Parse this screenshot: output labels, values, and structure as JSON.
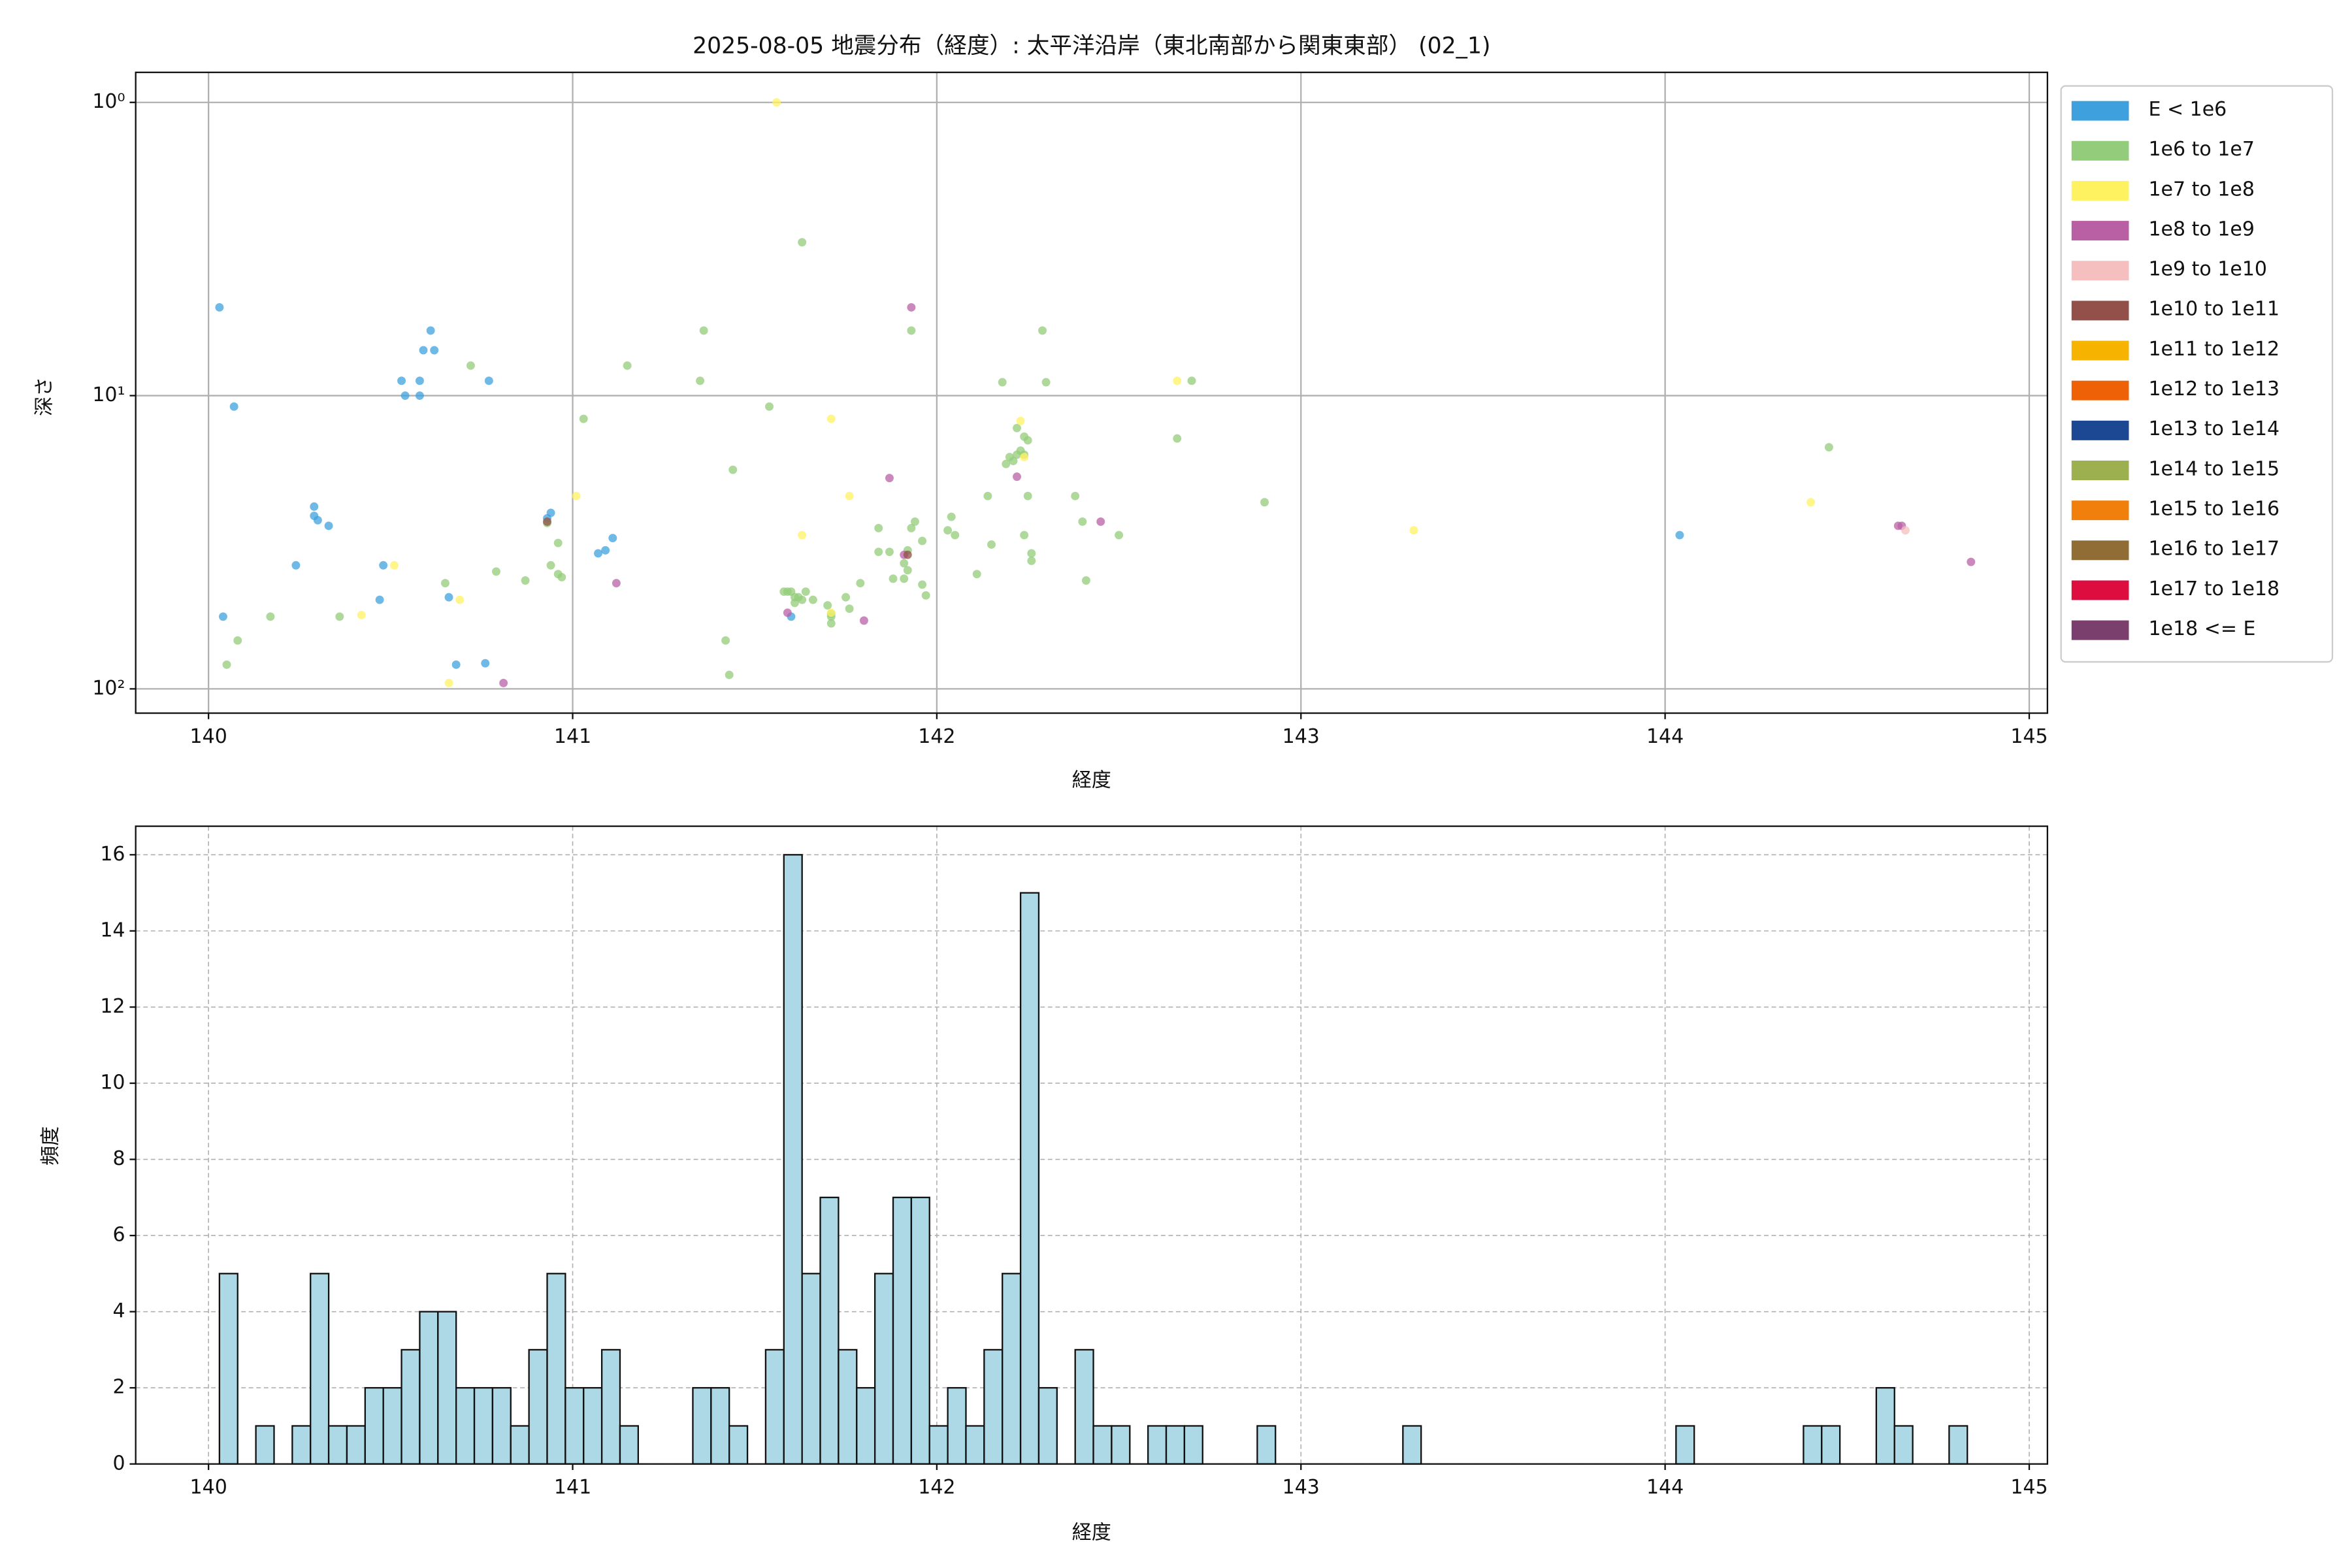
{
  "chart_data": [
    {
      "type": "scatter",
      "title": "2025-08-05 地震分布（経度）: 太平洋沿岸（東北南部から関東東部） (02_1)",
      "x_label": "経度",
      "y_label": "深さ",
      "xlim": [
        139.8,
        145.05
      ],
      "xticks": [
        140,
        141,
        142,
        143,
        144,
        145
      ],
      "ylim": [
        0.79,
        121
      ],
      "y_log": true,
      "y_inverted": true,
      "yticks": [
        {
          "value": 1,
          "label": "10⁰"
        },
        {
          "value": 10,
          "label": "10¹"
        },
        {
          "value": 100,
          "label": "10²"
        }
      ],
      "grid": true,
      "legend": "right",
      "series": [
        {
          "name": "E < 1e6",
          "color": "#3ea1dd",
          "x": [
            140.03,
            140.07,
            140.04,
            140.61,
            140.59,
            140.62,
            140.53,
            140.58,
            140.54,
            140.58,
            140.77,
            140.29,
            140.29,
            140.3,
            140.33,
            140.24,
            140.48,
            140.47,
            140.66,
            140.68,
            140.76,
            140.94,
            140.93,
            141.11,
            141.07,
            141.09,
            141.6,
            144.04
          ],
          "values": [
            5.0,
            10.9,
            56.7,
            6.0,
            7.0,
            7.0,
            8.9,
            8.9,
            10.0,
            10.0,
            8.9,
            23.9,
            25.7,
            26.6,
            27.8,
            37.9,
            37.9,
            49.7,
            48.7,
            82.7,
            81.8,
            25.1,
            26.2,
            30.6,
            34.5,
            33.7,
            56.7,
            29.9
          ]
        },
        {
          "name": "1e6 to 1e7",
          "color": "#93cc7a",
          "x": [
            140.05,
            140.08,
            140.17,
            140.36,
            140.65,
            140.72,
            140.79,
            140.87,
            140.93,
            140.94,
            140.96,
            140.97,
            140.96,
            141.03,
            141.15,
            141.36,
            141.35,
            141.44,
            141.42,
            141.43,
            141.54,
            141.63,
            141.58,
            141.59,
            141.6,
            141.61,
            141.62,
            141.64,
            141.61,
            141.63,
            141.66,
            141.7,
            141.71,
            141.71,
            141.71,
            141.75,
            141.76,
            141.79,
            141.84,
            141.84,
            141.87,
            141.88,
            141.91,
            141.91,
            141.92,
            141.92,
            141.93,
            141.94,
            141.96,
            141.96,
            141.97,
            141.93,
            142.03,
            142.05,
            142.04,
            142.11,
            142.14,
            142.15,
            142.18,
            142.19,
            142.2,
            142.21,
            142.22,
            142.23,
            142.24,
            142.22,
            142.24,
            142.25,
            142.24,
            142.25,
            142.26,
            142.26,
            142.29,
            142.3,
            142.38,
            142.4,
            142.41,
            142.5,
            142.66,
            142.7,
            142.9,
            144.45
          ],
          "values": [
            82.7,
            68.4,
            56.7,
            56.7,
            43.6,
            7.9,
            39.8,
            42.7,
            27.2,
            37.9,
            40.6,
            41.6,
            31.8,
            12.0,
            7.9,
            6.0,
            8.9,
            17.9,
            68.4,
            89.6,
            10.9,
            3.0,
            46.6,
            46.6,
            46.6,
            48.7,
            48.7,
            46.6,
            50.9,
            49.7,
            49.7,
            51.9,
            56.7,
            59.8,
            55.5,
            48.7,
            53.3,
            43.6,
            28.3,
            34.1,
            34.1,
            42.1,
            42.1,
            37.3,
            33.7,
            39.4,
            28.3,
            26.9,
            31.3,
            44.1,
            48.0,
            6.0,
            28.8,
            29.9,
            25.9,
            40.6,
            22.0,
            32.2,
            9.0,
            17.1,
            16.2,
            16.7,
            15.9,
            15.4,
            15.9,
            12.9,
            13.8,
            14.2,
            29.9,
            22.0,
            34.5,
            36.6,
            6.0,
            9.0,
            22.0,
            26.9,
            42.7,
            29.9,
            14.0,
            8.9,
            23.1,
            15.0
          ]
        },
        {
          "name": "1e7 to 1e8",
          "color": "#fff261",
          "x": [
            141.56,
            141.71,
            141.63,
            141.76,
            141.01,
            140.51,
            140.42,
            140.69,
            140.66,
            141.71,
            142.23,
            142.24,
            142.66,
            143.31,
            144.4
          ],
          "values": [
            1.0,
            12.0,
            29.9,
            22.0,
            22.0,
            37.9,
            56.0,
            49.7,
            95.5,
            55.0,
            12.2,
            16.2,
            8.9,
            28.8,
            23.1
          ]
        },
        {
          "name": "1e8 to 1e9",
          "color": "#b960a5",
          "x": [
            141.93,
            141.87,
            142.22,
            141.91,
            142.45,
            141.12,
            141.59,
            141.8,
            140.81,
            144.64,
            144.65,
            144.84
          ],
          "values": [
            5.0,
            19.1,
            18.9,
            34.9,
            26.9,
            43.6,
            55.0,
            58.5,
            95.5,
            27.8,
            27.8,
            36.9
          ]
        },
        {
          "name": "1e9 to 1e10",
          "color": "#f5bfbf",
          "x": [
            144.66
          ],
          "values": [
            28.8
          ]
        },
        {
          "name": "1e10 to 1e11",
          "color": "#93504a",
          "x": [
            141.92,
            140.93
          ],
          "values": [
            34.9,
            26.9
          ]
        },
        {
          "name": "1e11 to 1e12",
          "color": "#f6b400",
          "x": [],
          "values": []
        },
        {
          "name": "1e12 to 1e13",
          "color": "#ef6106",
          "x": [],
          "values": []
        },
        {
          "name": "1e13 to 1e14",
          "color": "#1c4792",
          "x": [],
          "values": []
        },
        {
          "name": "1e14 to 1e15",
          "color": "#9cb050",
          "x": [],
          "values": []
        },
        {
          "name": "1e15 to 1e16",
          "color": "#f07f0b",
          "x": [],
          "values": []
        },
        {
          "name": "1e16 to 1e17",
          "color": "#906d34",
          "x": [],
          "values": []
        },
        {
          "name": "1e17 to 1e18",
          "color": "#dd0d3f",
          "x": [],
          "values": []
        },
        {
          "name": "1e18 <= E",
          "color": "#7b3f6d",
          "x": [],
          "values": []
        }
      ]
    },
    {
      "type": "histogram",
      "x_label": "経度",
      "y_label": "頻度",
      "xlim": [
        139.8,
        145.05
      ],
      "xticks": [
        140,
        141,
        142,
        143,
        144,
        145
      ],
      "ylim": [
        0,
        16.75
      ],
      "yticks": [
        0,
        2,
        4,
        6,
        8,
        10,
        12,
        14,
        16
      ],
      "grid": true,
      "grid_style": "dashed",
      "color": "#add8e6",
      "bins": [
        140.03,
        140.08,
        140.13,
        140.18,
        140.23,
        140.28,
        140.33,
        140.38,
        140.43,
        140.48,
        140.53,
        140.58,
        140.63,
        140.68,
        140.73,
        140.78,
        140.83,
        140.88,
        140.93,
        140.98,
        141.03,
        141.08,
        141.13,
        141.18,
        141.23,
        141.28,
        141.33,
        141.38,
        141.43,
        141.48,
        141.53,
        141.58,
        141.63,
        141.68,
        141.73,
        141.78,
        141.83,
        141.88,
        141.93,
        141.98,
        142.03,
        142.08,
        142.13,
        142.18,
        142.23,
        142.28,
        142.33,
        142.38,
        142.43,
        142.48,
        142.53,
        142.58,
        142.63,
        142.68,
        142.73,
        142.78,
        142.83,
        142.88,
        142.93,
        142.98,
        143.03,
        143.08,
        143.13,
        143.18,
        143.23,
        143.28,
        143.33,
        143.38,
        143.43,
        143.48,
        143.53,
        143.58,
        143.63,
        143.68,
        143.73,
        143.78,
        143.83,
        143.88,
        143.93,
        143.98,
        144.03,
        144.08,
        144.13,
        144.18,
        144.23,
        144.28,
        144.33,
        144.38,
        144.43,
        144.48,
        144.53,
        144.58,
        144.63,
        144.68,
        144.73,
        144.78,
        144.83
      ],
      "values": [
        5,
        0,
        1,
        0,
        1,
        5,
        1,
        1,
        2,
        2,
        3,
        4,
        4,
        2,
        2,
        2,
        1,
        3,
        5,
        2,
        2,
        3,
        1,
        0,
        0,
        0,
        2,
        2,
        1,
        0,
        3,
        16,
        5,
        7,
        3,
        2,
        5,
        7,
        7,
        1,
        2,
        1,
        3,
        5,
        15,
        2,
        0,
        3,
        1,
        1,
        0,
        1,
        1,
        1,
        0,
        0,
        0,
        1,
        0,
        0,
        0,
        0,
        0,
        0,
        0,
        1,
        0,
        0,
        0,
        0,
        0,
        0,
        0,
        0,
        0,
        0,
        0,
        0,
        0,
        0,
        1,
        0,
        0,
        0,
        0,
        0,
        0,
        1,
        1,
        0,
        0,
        2,
        1,
        0,
        0,
        1
      ]
    }
  ]
}
